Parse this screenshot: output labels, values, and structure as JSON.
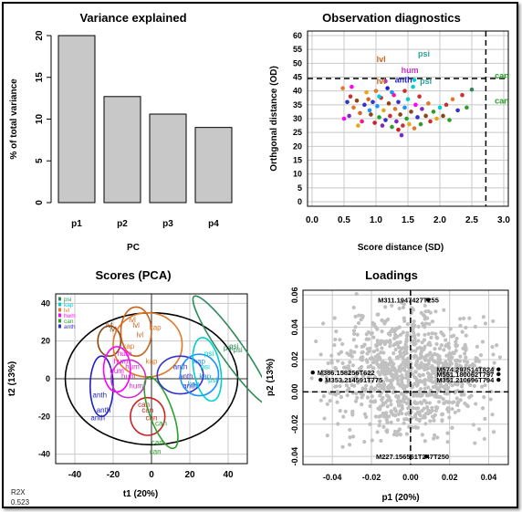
{
  "figure": {
    "r2x_label": "R2X",
    "r2x_value": "0.523"
  },
  "chart_data": [
    {
      "type": "bar",
      "title": "Variance explained",
      "xlabel": "PC",
      "ylabel": "% of total variance",
      "categories": [
        "p1",
        "p2",
        "p3",
        "p4"
      ],
      "values": [
        20.0,
        12.7,
        10.6,
        9.0
      ],
      "ylim": [
        0,
        20
      ],
      "yticks": [
        0,
        5,
        10,
        15,
        20
      ],
      "bar_color": "#c8c8c8"
    },
    {
      "type": "scatter",
      "title": "Observation diagnostics",
      "xlabel": "Score distance (SD)",
      "ylabel": "Orthgonal distance (OD)",
      "xlim": [
        0,
        3.0
      ],
      "ylim": [
        0,
        60
      ],
      "xticks": [
        0.0,
        0.5,
        1.0,
        1.5,
        2.0,
        2.5,
        3.0
      ],
      "yticks": [
        0,
        5,
        10,
        15,
        20,
        25,
        30,
        35,
        40,
        45,
        50,
        55,
        60
      ],
      "grid": true,
      "cutoff_sd": 2.72,
      "cutoff_od": 44.5,
      "labels": [
        {
          "text": "psi",
          "x": 1.75,
          "y": 52.5,
          "color": "#2aa198"
        },
        {
          "text": "lvl",
          "x": 1.08,
          "y": 50.5,
          "color": "#c8641e"
        },
        {
          "text": "hum",
          "x": 1.53,
          "y": 46.5,
          "color": "#c832c8"
        },
        {
          "text": "can",
          "x": 2.97,
          "y": 44.5,
          "color": "#2aa02a"
        },
        {
          "text": "lvl",
          "x": 1.08,
          "y": 42.5,
          "color": "#c8641e"
        },
        {
          "text": "anth",
          "x": 1.43,
          "y": 43.0,
          "color": "#1e1ec8"
        },
        {
          "text": "psi",
          "x": 1.78,
          "y": 42.5,
          "color": "#2aa198"
        },
        {
          "text": "can",
          "x": 2.97,
          "y": 35.5,
          "color": "#2aa02a"
        }
      ],
      "points": [
        [
          0.48,
          41.0,
          "#e07828"
        ],
        [
          0.55,
          36.0,
          "#3232c8"
        ],
        [
          0.6,
          38.0,
          "#c83232"
        ],
        [
          0.65,
          34.0,
          "#e07828"
        ],
        [
          0.7,
          36.5,
          "#8b4513"
        ],
        [
          0.75,
          32.0,
          "#d2691e"
        ],
        [
          0.5,
          30.0,
          "#ff00ff"
        ],
        [
          0.58,
          31.0,
          "#7b2cbf"
        ],
        [
          0.78,
          29.0,
          "#ff1493"
        ],
        [
          0.82,
          35.0,
          "#3232c8"
        ],
        [
          0.85,
          39.5,
          "#e6a817"
        ],
        [
          0.9,
          33.0,
          "#1e90ff"
        ],
        [
          0.92,
          31.5,
          "#8b4513"
        ],
        [
          0.95,
          36.0,
          "#3232c8"
        ],
        [
          0.98,
          28.5,
          "#cc2222"
        ],
        [
          1.0,
          40.0,
          "#e07828"
        ],
        [
          1.02,
          34.5,
          "#1e90ff"
        ],
        [
          1.05,
          30.5,
          "#2aa02a"
        ],
        [
          1.08,
          37.5,
          "#c83232"
        ],
        [
          1.1,
          27.5,
          "#7b2cbf"
        ],
        [
          1.12,
          33.0,
          "#e6a817"
        ],
        [
          1.15,
          29.5,
          "#3232c8"
        ],
        [
          1.18,
          41.0,
          "#1e1ec8"
        ],
        [
          1.2,
          35.5,
          "#8b4513"
        ],
        [
          1.22,
          31.0,
          "#c83232"
        ],
        [
          1.25,
          27.0,
          "#2aa02a"
        ],
        [
          1.28,
          38.5,
          "#ff1493"
        ],
        [
          1.3,
          33.5,
          "#e07828"
        ],
        [
          1.32,
          29.0,
          "#7b2cbf"
        ],
        [
          1.35,
          36.0,
          "#3232c8"
        ],
        [
          1.38,
          31.5,
          "#8b4513"
        ],
        [
          1.4,
          24.0,
          "#7b2cbf"
        ],
        [
          1.42,
          27.5,
          "#c83232"
        ],
        [
          1.45,
          34.0,
          "#1e90ff"
        ],
        [
          1.48,
          30.0,
          "#2aa02a"
        ],
        [
          1.5,
          37.0,
          "#00ced1"
        ],
        [
          1.52,
          28.0,
          "#e6a817"
        ],
        [
          1.55,
          32.5,
          "#8b4513"
        ],
        [
          1.58,
          41.5,
          "#00ced1"
        ],
        [
          1.6,
          26.5,
          "#e07828"
        ],
        [
          1.62,
          35.0,
          "#ff00ff"
        ],
        [
          1.65,
          30.5,
          "#3232c8"
        ],
        [
          1.68,
          38.0,
          "#c83232"
        ],
        [
          1.7,
          28.0,
          "#2aa02a"
        ],
        [
          1.72,
          33.5,
          "#7b2cbf"
        ],
        [
          1.78,
          31.0,
          "#8b4513"
        ],
        [
          1.82,
          35.5,
          "#e07828"
        ],
        [
          1.85,
          29.0,
          "#c83232"
        ],
        [
          1.9,
          32.5,
          "#2aa02a"
        ],
        [
          1.95,
          30.0,
          "#e6a817"
        ],
        [
          2.0,
          34.0,
          "#00ced1"
        ],
        [
          2.05,
          31.0,
          "#8b4513"
        ],
        [
          2.1,
          35.0,
          "#c83232"
        ],
        [
          2.15,
          29.5,
          "#2aa02a"
        ],
        [
          2.2,
          37.0,
          "#e07828"
        ],
        [
          2.28,
          33.0,
          "#3232c8"
        ],
        [
          2.35,
          38.5,
          "#c83232"
        ],
        [
          2.42,
          34.0,
          "#2aa02a"
        ],
        [
          2.5,
          40.5,
          "#2e8b57"
        ],
        [
          0.62,
          41.5,
          "#ff00ff"
        ],
        [
          1.15,
          43.5,
          "#c832c8"
        ],
        [
          1.25,
          39.5,
          "#1e90ff"
        ],
        [
          1.45,
          40.0,
          "#c83232"
        ],
        [
          1.35,
          26.0,
          "#cc2222"
        ],
        [
          0.72,
          27.5,
          "#e6a817"
        ],
        [
          1.05,
          38.0,
          "#00ced1"
        ],
        [
          1.6,
          44.0,
          "#00ced1"
        ],
        [
          0.88,
          37.0,
          "#d2691e"
        ]
      ]
    },
    {
      "type": "scatter",
      "title": "Scores (PCA)",
      "xlabel": "t1 (20%)",
      "ylabel": "t2 (13%)",
      "xlim": [
        -50,
        50
      ],
      "ylim": [
        -45,
        45
      ],
      "xticks": [
        -40,
        -20,
        0,
        20,
        40
      ],
      "yticks": [
        -40,
        -20,
        0,
        20,
        40
      ],
      "grid": true,
      "legend": {
        "position": "top-left",
        "entries": [
          {
            "name": "psi",
            "color": "#2e8b57"
          },
          {
            "name": "kap",
            "color": "#00ced1"
          },
          {
            "name": "lvl",
            "color": "#e07828"
          },
          {
            "name": "hum",
            "color": "#ff00ff"
          },
          {
            "name": "can",
            "color": "#2aa02a"
          },
          {
            "name": "anth",
            "color": "#3232c8"
          }
        ]
      },
      "groups": [
        {
          "name": "lvl",
          "label": "lvl",
          "color": "#8b4513",
          "ellipse": {
            "cx": -22,
            "cy": 20,
            "rx": 6,
            "ry": 8,
            "angle": 0
          },
          "label_points": [
            [
              -22,
              27
            ],
            [
              -20,
              25
            ]
          ]
        },
        {
          "name": "kap",
          "label": "kap",
          "color": "#e07828",
          "ellipse": {
            "cx": -2,
            "cy": 18,
            "rx": 18,
            "ry": 17,
            "angle": 0
          },
          "label_points": [
            [
              2,
              26
            ],
            [
              0,
              8
            ],
            [
              -12,
              16
            ]
          ]
        },
        {
          "name": "lvl2",
          "label": "lvl",
          "color": "#c8641e",
          "ellipse": {
            "cx": -8,
            "cy": 25,
            "rx": 8,
            "ry": 13,
            "angle": 0
          },
          "label_points": [
            [
              -10,
              30
            ],
            [
              -8,
              27
            ],
            [
              -6,
              22
            ]
          ]
        },
        {
          "name": "anth",
          "label": "anth",
          "color": "#1e1ec8",
          "ellipse": {
            "cx": -26,
            "cy": -4,
            "rx": 6,
            "ry": 16,
            "angle": 0
          },
          "label_points": [
            [
              -28,
              -22
            ],
            [
              -25,
              -18
            ],
            [
              -27,
              -10
            ]
          ]
        },
        {
          "name": "hum",
          "label": "hum",
          "color": "#ff00ff",
          "ellipse": {
            "cx": -18,
            "cy": 5,
            "rx": 7,
            "ry": 12,
            "angle": 0
          },
          "label_points": [
            [
              -16,
              8
            ],
            [
              -18,
              3
            ],
            [
              -14,
              12
            ]
          ]
        },
        {
          "name": "ptr",
          "label": "hum",
          "color": "#c832c8",
          "ellipse": {
            "cx": -12,
            "cy": 0,
            "rx": 9,
            "ry": 10,
            "angle": 0
          },
          "label_points": [
            [
              -12,
              0
            ],
            [
              -10,
              5
            ],
            [
              -8,
              -5
            ]
          ]
        },
        {
          "name": "can",
          "label": "can",
          "color": "#cc2222",
          "ellipse": {
            "cx": -2,
            "cy": -20,
            "rx": 9,
            "ry": 10,
            "angle": 0
          },
          "label_points": [
            [
              -4,
              -15
            ],
            [
              0,
              -22
            ],
            [
              -2,
              -18
            ]
          ]
        },
        {
          "name": "can2",
          "label": "can",
          "color": "#2aa02a",
          "ellipse": {
            "cx": 5,
            "cy": -18,
            "rx": 6,
            "ry": 20,
            "angle": 20
          },
          "label_points": [
            [
              5,
              -25
            ],
            [
              3,
              -35
            ],
            [
              2,
              -40
            ]
          ]
        },
        {
          "name": "anth2",
          "label": "anth",
          "color": "#3232c8",
          "ellipse": {
            "cx": 15,
            "cy": 2,
            "rx": 12,
            "ry": 10,
            "angle": 0
          },
          "label_points": [
            [
              15,
              5
            ],
            [
              18,
              0
            ],
            [
              20,
              -5
            ]
          ]
        },
        {
          "name": "kap2",
          "label": "kap",
          "color": "#1e90ff",
          "ellipse": {
            "cx": 25,
            "cy": 2,
            "rx": 10,
            "ry": 11,
            "angle": 0
          },
          "label_points": [
            [
              25,
              8
            ],
            [
              28,
              0
            ],
            [
              22,
              -4
            ]
          ]
        },
        {
          "name": "psi",
          "label": "psi",
          "color": "#00ced1",
          "ellipse": {
            "cx": 29,
            "cy": 5,
            "rx": 7,
            "ry": 17,
            "angle": 10
          },
          "label_points": [
            [
              30,
              12
            ],
            [
              28,
              5
            ],
            [
              32,
              -2
            ]
          ]
        },
        {
          "name": "psi2",
          "label": "psi",
          "color": "#2e8b57",
          "ellipse": {
            "cx": 42,
            "cy": 15,
            "rx": 6,
            "ry": 35,
            "angle": 35
          },
          "label_points": [
            [
              40,
              15
            ],
            [
              43,
              16
            ],
            [
              45,
              14
            ]
          ]
        }
      ],
      "hotelling_ellipse": {
        "rx": 45,
        "ry": 35
      }
    },
    {
      "type": "scatter",
      "title": "Loadings",
      "xlabel": "p1 (20%)",
      "ylabel": "p2 (13%)",
      "xlim": [
        -0.055,
        0.05
      ],
      "ylim": [
        -0.045,
        0.063
      ],
      "xticks": [
        -0.04,
        -0.02,
        0.0,
        0.02,
        0.04
      ],
      "yticks": [
        -0.04,
        -0.02,
        0.0,
        0.02,
        0.04,
        0.06
      ],
      "grid": true,
      "crosshair": {
        "x": 0.0,
        "y": 0.0
      },
      "point_color": "#c0c0c0",
      "cloud": {
        "count": 1000,
        "seed": 42
      },
      "annotations": [
        {
          "text": "M311.1947427T255",
          "x": 0.009,
          "y": 0.057
        },
        {
          "text": "M386.158256T622",
          "x": -0.05,
          "y": 0.012
        },
        {
          "text": "M574.297514T824",
          "x": 0.045,
          "y": 0.014
        },
        {
          "text": "M551.180062T797",
          "x": 0.045,
          "y": 0.011
        },
        {
          "text": "M353.214591T775",
          "x": -0.046,
          "y": 0.0075
        },
        {
          "text": "M351.210696T794",
          "x": 0.045,
          "y": 0.0075
        },
        {
          "text": "M227.156561T247T250",
          "x": 0.008,
          "y": -0.04
        }
      ]
    }
  ]
}
